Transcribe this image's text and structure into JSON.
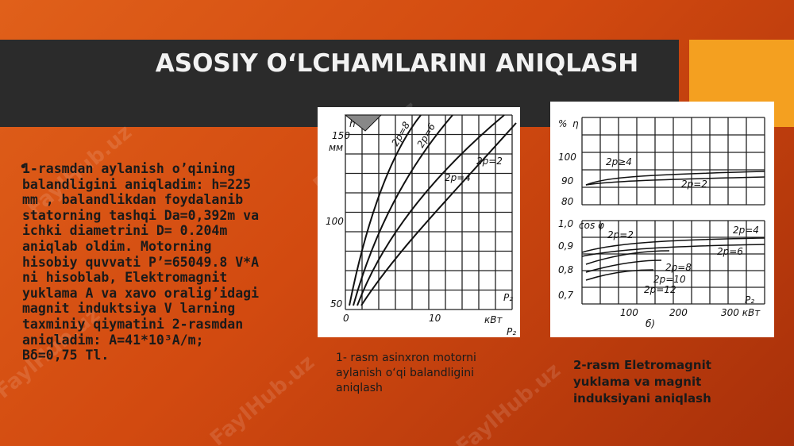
{
  "header": {
    "title": "ASOSIY O‘LCHAMLARINI ANIQLASH"
  },
  "watermark": "FaylHub.uz",
  "body": {
    "bullet": "•",
    "lines": [
      "1-rasmdan aylanish o’qining",
      "balandligini aniqladim: h=225",
      "mm , balandlikdan foydalanib",
      "statorning tashqi Da=0,392m va",
      "ichki diametrini D= 0.204m",
      "aniqlab oldim. Motorning",
      "hisobiy quvvati P’=65049.8 V*A",
      "ni hisoblab,  Elektromagnit",
      "yuklama A va xavo oralig’idagi",
      "magnit induktsiya V larning",
      "taxminiy qiymatini 2-rasmdan",
      "aniqladim: A=41*10³A/m;",
      "Bδ=0,75 Tl."
    ]
  },
  "figure_1": {
    "labels": [
      "150",
      "h",
      "мм",
      "100",
      "50",
      "0",
      "10",
      "кВт",
      "P₂",
      "P₂",
      "2p=8",
      "2p=6",
      "2p=2",
      "2p=4"
    ],
    "caption": [
      "1- rasm asinxron motorni",
      "aylanish o‘qi balandligini",
      "aniqlash"
    ]
  },
  "figure_2": {
    "labels": [
      "%",
      "η",
      "100",
      "90",
      "80",
      "2p≥4",
      "2p=2",
      "1,0",
      "cos φ",
      "0,9",
      "0,8",
      "0,7",
      "2p=2",
      "2p=4",
      "2p=6",
      "2p=8",
      "2p=10",
      "2p=12",
      "100",
      "200",
      "300 кВт",
      "P₂",
      "б)"
    ],
    "caption": [
      "2-rasm Eletromagnit",
      "yuklama va magnit",
      "induksiyani aniqlash"
    ]
  }
}
